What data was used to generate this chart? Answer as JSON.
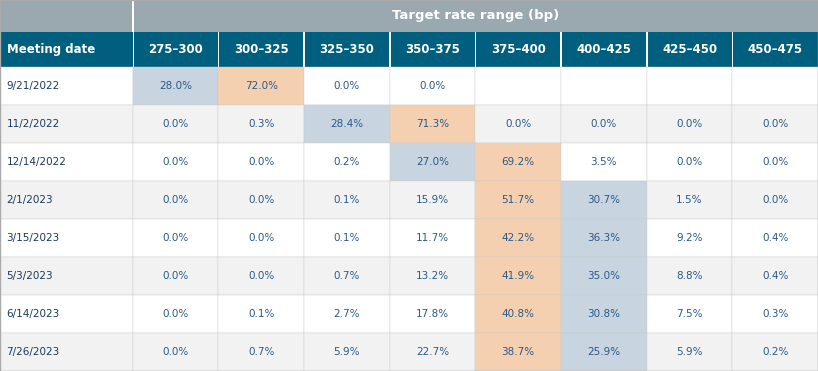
{
  "title": "Target rate range (bp)",
  "col_header": [
    "Meeting date",
    "275–300",
    "300–325",
    "325–350",
    "350–375",
    "375–400",
    "400–425",
    "425–450",
    "450–475"
  ],
  "rows": [
    [
      "9/21/2022",
      "28.0%",
      "72.0%",
      "0.0%",
      "0.0%",
      "",
      "",
      "",
      ""
    ],
    [
      "11/2/2022",
      "0.0%",
      "0.3%",
      "28.4%",
      "71.3%",
      "0.0%",
      "0.0%",
      "0.0%",
      "0.0%"
    ],
    [
      "12/14/2022",
      "0.0%",
      "0.0%",
      "0.2%",
      "27.0%",
      "69.2%",
      "3.5%",
      "0.0%",
      "0.0%"
    ],
    [
      "2/1/2023",
      "0.0%",
      "0.0%",
      "0.1%",
      "15.9%",
      "51.7%",
      "30.7%",
      "1.5%",
      "0.0%"
    ],
    [
      "3/15/2023",
      "0.0%",
      "0.0%",
      "0.1%",
      "11.7%",
      "42.2%",
      "36.3%",
      "9.2%",
      "0.4%"
    ],
    [
      "5/3/2023",
      "0.0%",
      "0.0%",
      "0.7%",
      "13.2%",
      "41.9%",
      "35.0%",
      "8.8%",
      "0.4%"
    ],
    [
      "6/14/2023",
      "0.0%",
      "0.1%",
      "2.7%",
      "17.8%",
      "40.8%",
      "30.8%",
      "7.5%",
      "0.3%"
    ],
    [
      "7/26/2023",
      "0.0%",
      "0.7%",
      "5.9%",
      "22.7%",
      "38.7%",
      "25.9%",
      "5.9%",
      "0.2%"
    ]
  ],
  "highlight_cells": [
    [
      0,
      1,
      "blue_light"
    ],
    [
      0,
      2,
      "orange_light"
    ],
    [
      1,
      3,
      "blue_light"
    ],
    [
      1,
      4,
      "orange_light"
    ],
    [
      2,
      4,
      "blue_light"
    ],
    [
      2,
      5,
      "orange_light"
    ],
    [
      3,
      5,
      "orange_light"
    ],
    [
      3,
      6,
      "blue_light"
    ],
    [
      4,
      5,
      "orange_light"
    ],
    [
      4,
      6,
      "blue_light"
    ],
    [
      5,
      5,
      "orange_light"
    ],
    [
      5,
      6,
      "blue_light"
    ],
    [
      6,
      5,
      "orange_light"
    ],
    [
      6,
      6,
      "blue_light"
    ],
    [
      7,
      5,
      "orange_light"
    ],
    [
      7,
      6,
      "blue_light"
    ]
  ],
  "color_header_top": "#9aa8b0",
  "color_header_bottom": "#005f7f",
  "color_row_even": "#ffffff",
  "color_row_odd": "#f2f2f2",
  "color_blue_light": "#c8d4e0",
  "color_orange_light": "#f5d0b0",
  "color_text_header": "#ffffff",
  "color_text_data": "#2a5a88",
  "color_text_date": "#1a3a5c",
  "color_border": "#cccccc",
  "col_widths_rel": [
    1.55,
    1.0,
    1.0,
    1.0,
    1.0,
    1.0,
    1.0,
    1.0,
    1.0
  ]
}
